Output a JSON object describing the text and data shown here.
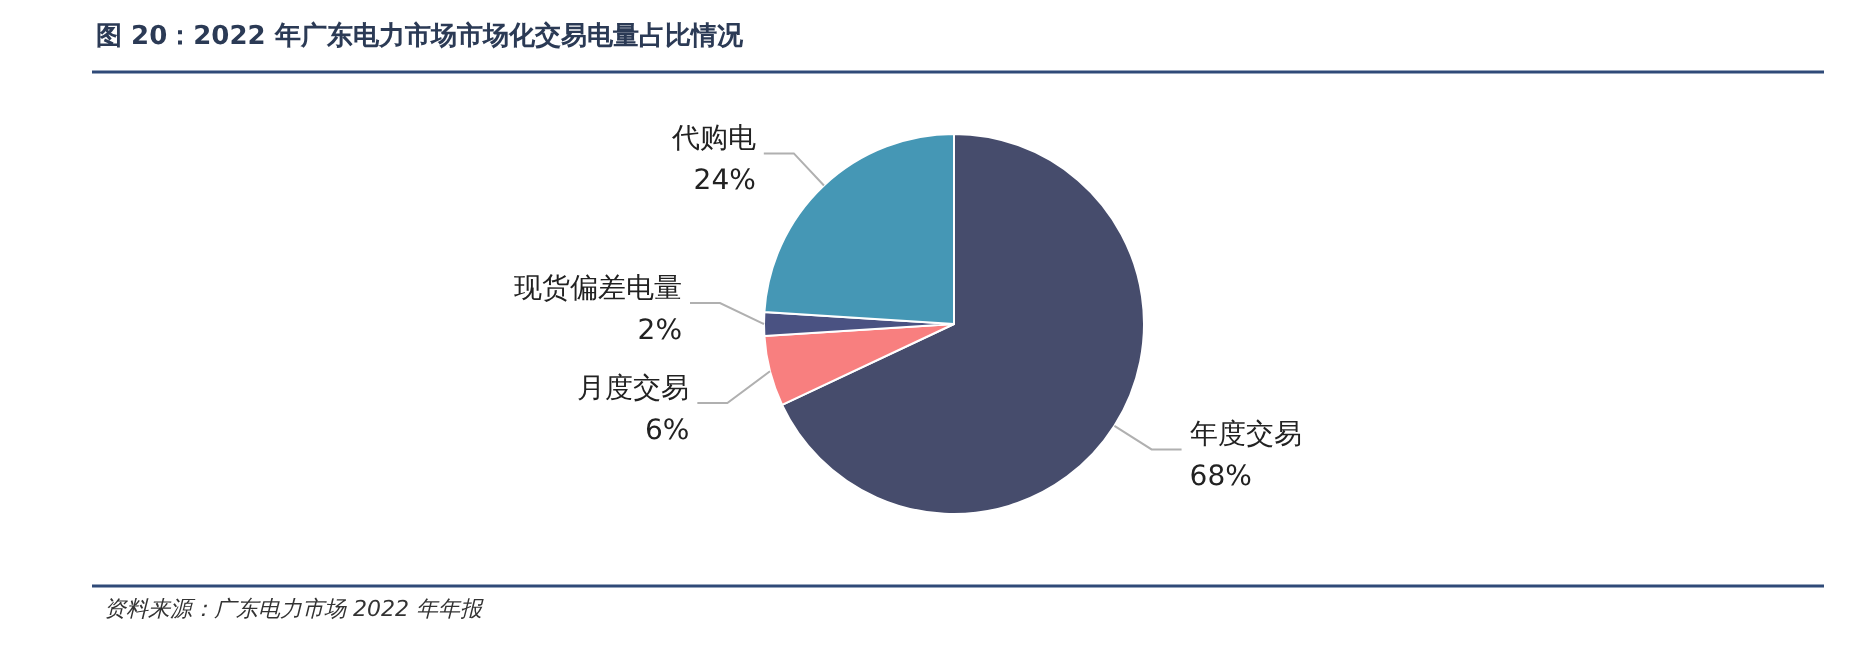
{
  "chart_data": {
    "type": "pie",
    "title": "图 20：2022 年广东电力市场市场化交易电量占比情况",
    "categories": [
      "年度交易",
      "月度交易",
      "现货偏差电量",
      "代购电"
    ],
    "values": [
      68,
      6,
      2,
      24
    ],
    "colors": [
      "#464c6c",
      "#f87f7f",
      "#4a5282",
      "#4597b5"
    ],
    "value_labels": [
      "68%",
      "6%",
      "2%",
      "24%"
    ],
    "annotations": [
      "资料来源：广东电力市场 2022 年年报"
    ]
  }
}
